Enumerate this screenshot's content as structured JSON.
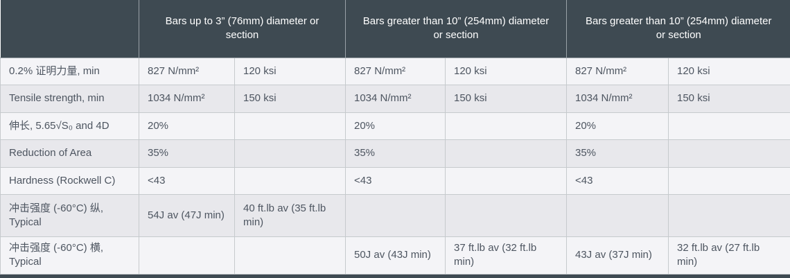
{
  "table": {
    "corner_label": "",
    "column_groups": [
      "Bars up to 3” (76mm) diameter or section",
      "Bars greater than 10” (254mm) diameter or section",
      "Bars greater than 10” (254mm) diameter or section"
    ],
    "rows": [
      {
        "label": "0.2% 证明力量, min",
        "cells": [
          "827 N/mm²",
          "120 ksi",
          "827 N/mm²",
          "120 ksi",
          "827 N/mm²",
          "120 ksi"
        ]
      },
      {
        "label": "Tensile strength, min",
        "cells": [
          "1034 N/mm²",
          "150 ksi",
          "1034 N/mm²",
          "150 ksi",
          "1034 N/mm²",
          "150 ksi"
        ]
      },
      {
        "label": "伸长, 5.65√S₀ and 4D",
        "cells": [
          "20%",
          "",
          "20%",
          "",
          "20%",
          ""
        ]
      },
      {
        "label": "Reduction of Area",
        "cells": [
          "35%",
          "",
          "35%",
          "",
          "35%",
          ""
        ]
      },
      {
        "label": "Hardness (Rockwell C)",
        "cells": [
          "<43",
          "",
          "<43",
          "",
          "<43",
          ""
        ]
      },
      {
        "label": "冲击强度 (-60°C) 纵, Typical",
        "cells": [
          "54J av (47J min)",
          "40 ft.lb av (35 ft.lb min)",
          "",
          "",
          "",
          ""
        ]
      },
      {
        "label": "冲击强度 (-60°C) 横, Typical",
        "cells": [
          "",
          "",
          "50J av (43J min)",
          "37 ft.lb av (32 ft.lb min)",
          "43J av (37J min)",
          "32 ft.lb av (27 ft.lb min)"
        ]
      }
    ]
  },
  "colors": {
    "header_bg": "#3e4a52",
    "header_text": "#ffffff",
    "row_light": "#f4f4f7",
    "row_dark": "#e8e8ec",
    "body_text": "#4d5560",
    "border": "#c6cacd"
  }
}
